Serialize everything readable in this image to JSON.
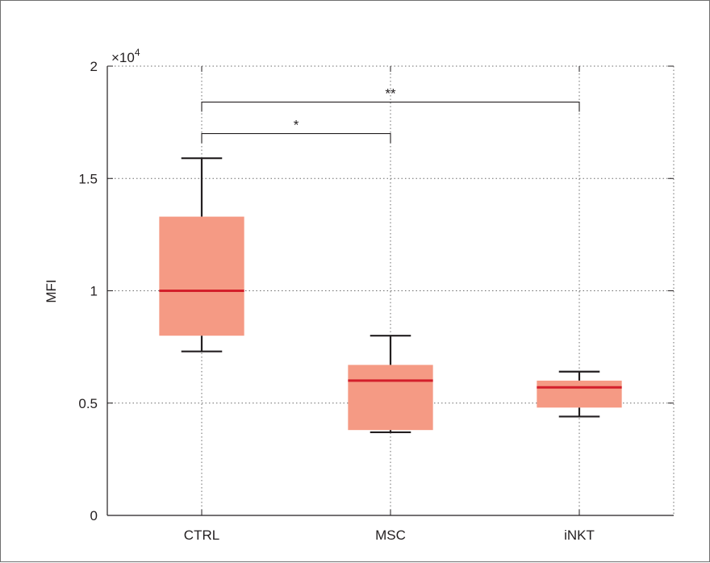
{
  "chart_data": {
    "type": "box",
    "ylabel": "MFI",
    "y_multiplier_label": {
      "base": "×10",
      "exponent": "4"
    },
    "ylim": [
      0,
      20000
    ],
    "y_ticks": [
      {
        "value": 0,
        "label": "0"
      },
      {
        "value": 5000,
        "label": "0.5"
      },
      {
        "value": 10000,
        "label": "1"
      },
      {
        "value": 15000,
        "label": "1.5"
      },
      {
        "value": 20000,
        "label": "2"
      }
    ],
    "grid": true,
    "categories": [
      "CTRL",
      "MSC",
      "iNKT"
    ],
    "boxes": [
      {
        "label": "CTRL",
        "whisker_low": 7300,
        "q1": 8000,
        "median": 10000,
        "q3": 13300,
        "whisker_high": 15900
      },
      {
        "label": "MSC",
        "whisker_low": 3700,
        "q1": 3800,
        "median": 6000,
        "q3": 6700,
        "whisker_high": 8000
      },
      {
        "label": "iNKT",
        "whisker_low": 4400,
        "q1": 4800,
        "median": 5700,
        "q3": 6000,
        "whisker_high": 6400
      }
    ],
    "significance": [
      {
        "from": "CTRL",
        "to": "MSC",
        "y": 17000,
        "label": "*"
      },
      {
        "from": "CTRL",
        "to": "iNKT",
        "y": 18400,
        "label": "**"
      }
    ],
    "colors": {
      "box_fill": "#f59a84",
      "median": "#d31f2b",
      "whisker": "#231f20"
    }
  }
}
